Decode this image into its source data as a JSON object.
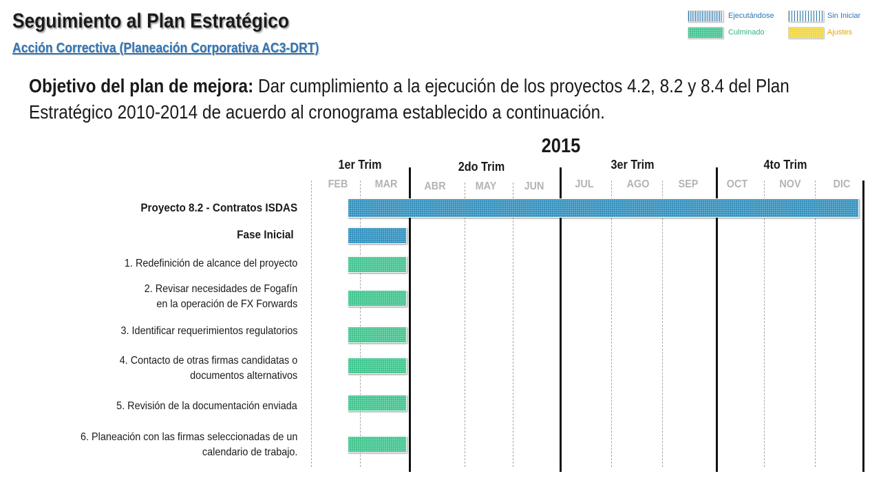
{
  "header": {
    "title": "Seguimiento al Plan Estratégico",
    "subtitle": "Acción Correctiva (Planeación Corporativa AC3-DRT)"
  },
  "legend": {
    "items": [
      {
        "label": "Ejecutándose",
        "color": "#1f6fa5",
        "pattern": "vertical-lines-dense"
      },
      {
        "label": "Sin Iniciar",
        "color": "#1f6fa5",
        "pattern": "vertical-lines-sparse"
      },
      {
        "label": "Culminado",
        "color": "#2fbf85",
        "pattern": "dotted"
      },
      {
        "label": "Ajustes",
        "color": "#f2d21a",
        "pattern": "dotted"
      }
    ]
  },
  "objective": {
    "label": "Objetivo del plan de mejora:",
    "text": " Dar cumplimiento a la ejecución de los proyectos 4.2, 8.2 y 8.4 del Plan Estratégico 2010-2014 de acuerdo al cronograma establecido a continuación."
  },
  "timeline": {
    "year": "2015",
    "quarters": [
      "1er Trim",
      "2do Trim",
      "3er Trim",
      "4to Trim"
    ],
    "months": [
      "FEB",
      "MAR",
      "ABR",
      "MAY",
      "JUN",
      "JUL",
      "AGO",
      "SEP",
      "OCT",
      "NOV",
      "DIC"
    ]
  },
  "tasks": [
    {
      "label": "Proyecto 8.2 - Contratos ISDAS",
      "status": "Ejecutándose",
      "start": "FEB",
      "end": "DIC",
      "style": "bold"
    },
    {
      "label": "Fase Inicial",
      "status": "Ejecutándose",
      "start": "FEB",
      "end": "MAR",
      "style": "bold"
    },
    {
      "label": "1. Redefinición de alcance del proyecto",
      "status": "Culminado",
      "start": "FEB",
      "end": "MAR",
      "style": "normal"
    },
    {
      "label": "2. Revisar necesidades de Fogafín\nen la operación de FX Forwards",
      "status": "Culminado",
      "start": "FEB",
      "end": "MAR",
      "style": "normal"
    },
    {
      "label": "3. Identificar requerimientos regulatorios",
      "status": "Culminado",
      "start": "FEB",
      "end": "MAR",
      "style": "normal"
    },
    {
      "label": "4. Contacto de otras firmas candidatas  o\ndocumentos alternativos",
      "status": "Culminado",
      "start": "FEB",
      "end": "MAR",
      "style": "normal"
    },
    {
      "label": "5. Revisión de la documentación enviada",
      "status": "Culminado",
      "start": "FEB",
      "end": "MAR",
      "style": "normal"
    },
    {
      "label": "6. Planeación con las firmas seleccionadas de un\ncalendario de trabajo.",
      "status": "Culminado",
      "start": "FEB",
      "end": "MAR",
      "style": "normal"
    }
  ]
}
